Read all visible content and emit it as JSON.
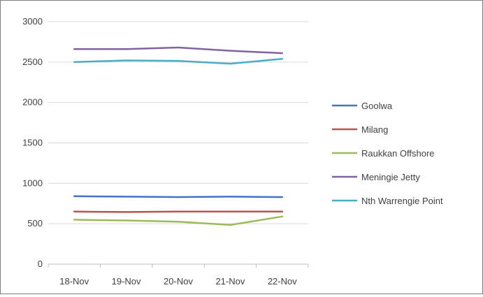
{
  "chart_data": {
    "type": "line",
    "title": "",
    "xlabel": "",
    "ylabel": "",
    "categories": [
      "18-Nov",
      "19-Nov",
      "20-Nov",
      "21-Nov",
      "22-Nov"
    ],
    "ylim": [
      0,
      3000
    ],
    "yticks": [
      0,
      500,
      1000,
      1500,
      2000,
      2500,
      3000
    ],
    "grid": "horizontal",
    "legend_position": "right",
    "series": [
      {
        "name": "Goolwa",
        "color": "#4472c4",
        "values": [
          840,
          835,
          830,
          835,
          830
        ]
      },
      {
        "name": "Milang",
        "color": "#c0504d",
        "values": [
          650,
          645,
          650,
          650,
          650
        ]
      },
      {
        "name": "Raukkan Offshore",
        "color": "#9bbb59",
        "values": [
          550,
          540,
          525,
          485,
          590
        ]
      },
      {
        "name": "Meningie Jetty",
        "color": "#8064a2",
        "values": [
          2660,
          2660,
          2680,
          2640,
          2610
        ]
      },
      {
        "name": "Nth Warrengie Point",
        "color": "#4bacc6",
        "values": [
          2500,
          2520,
          2515,
          2480,
          2540
        ]
      }
    ]
  }
}
